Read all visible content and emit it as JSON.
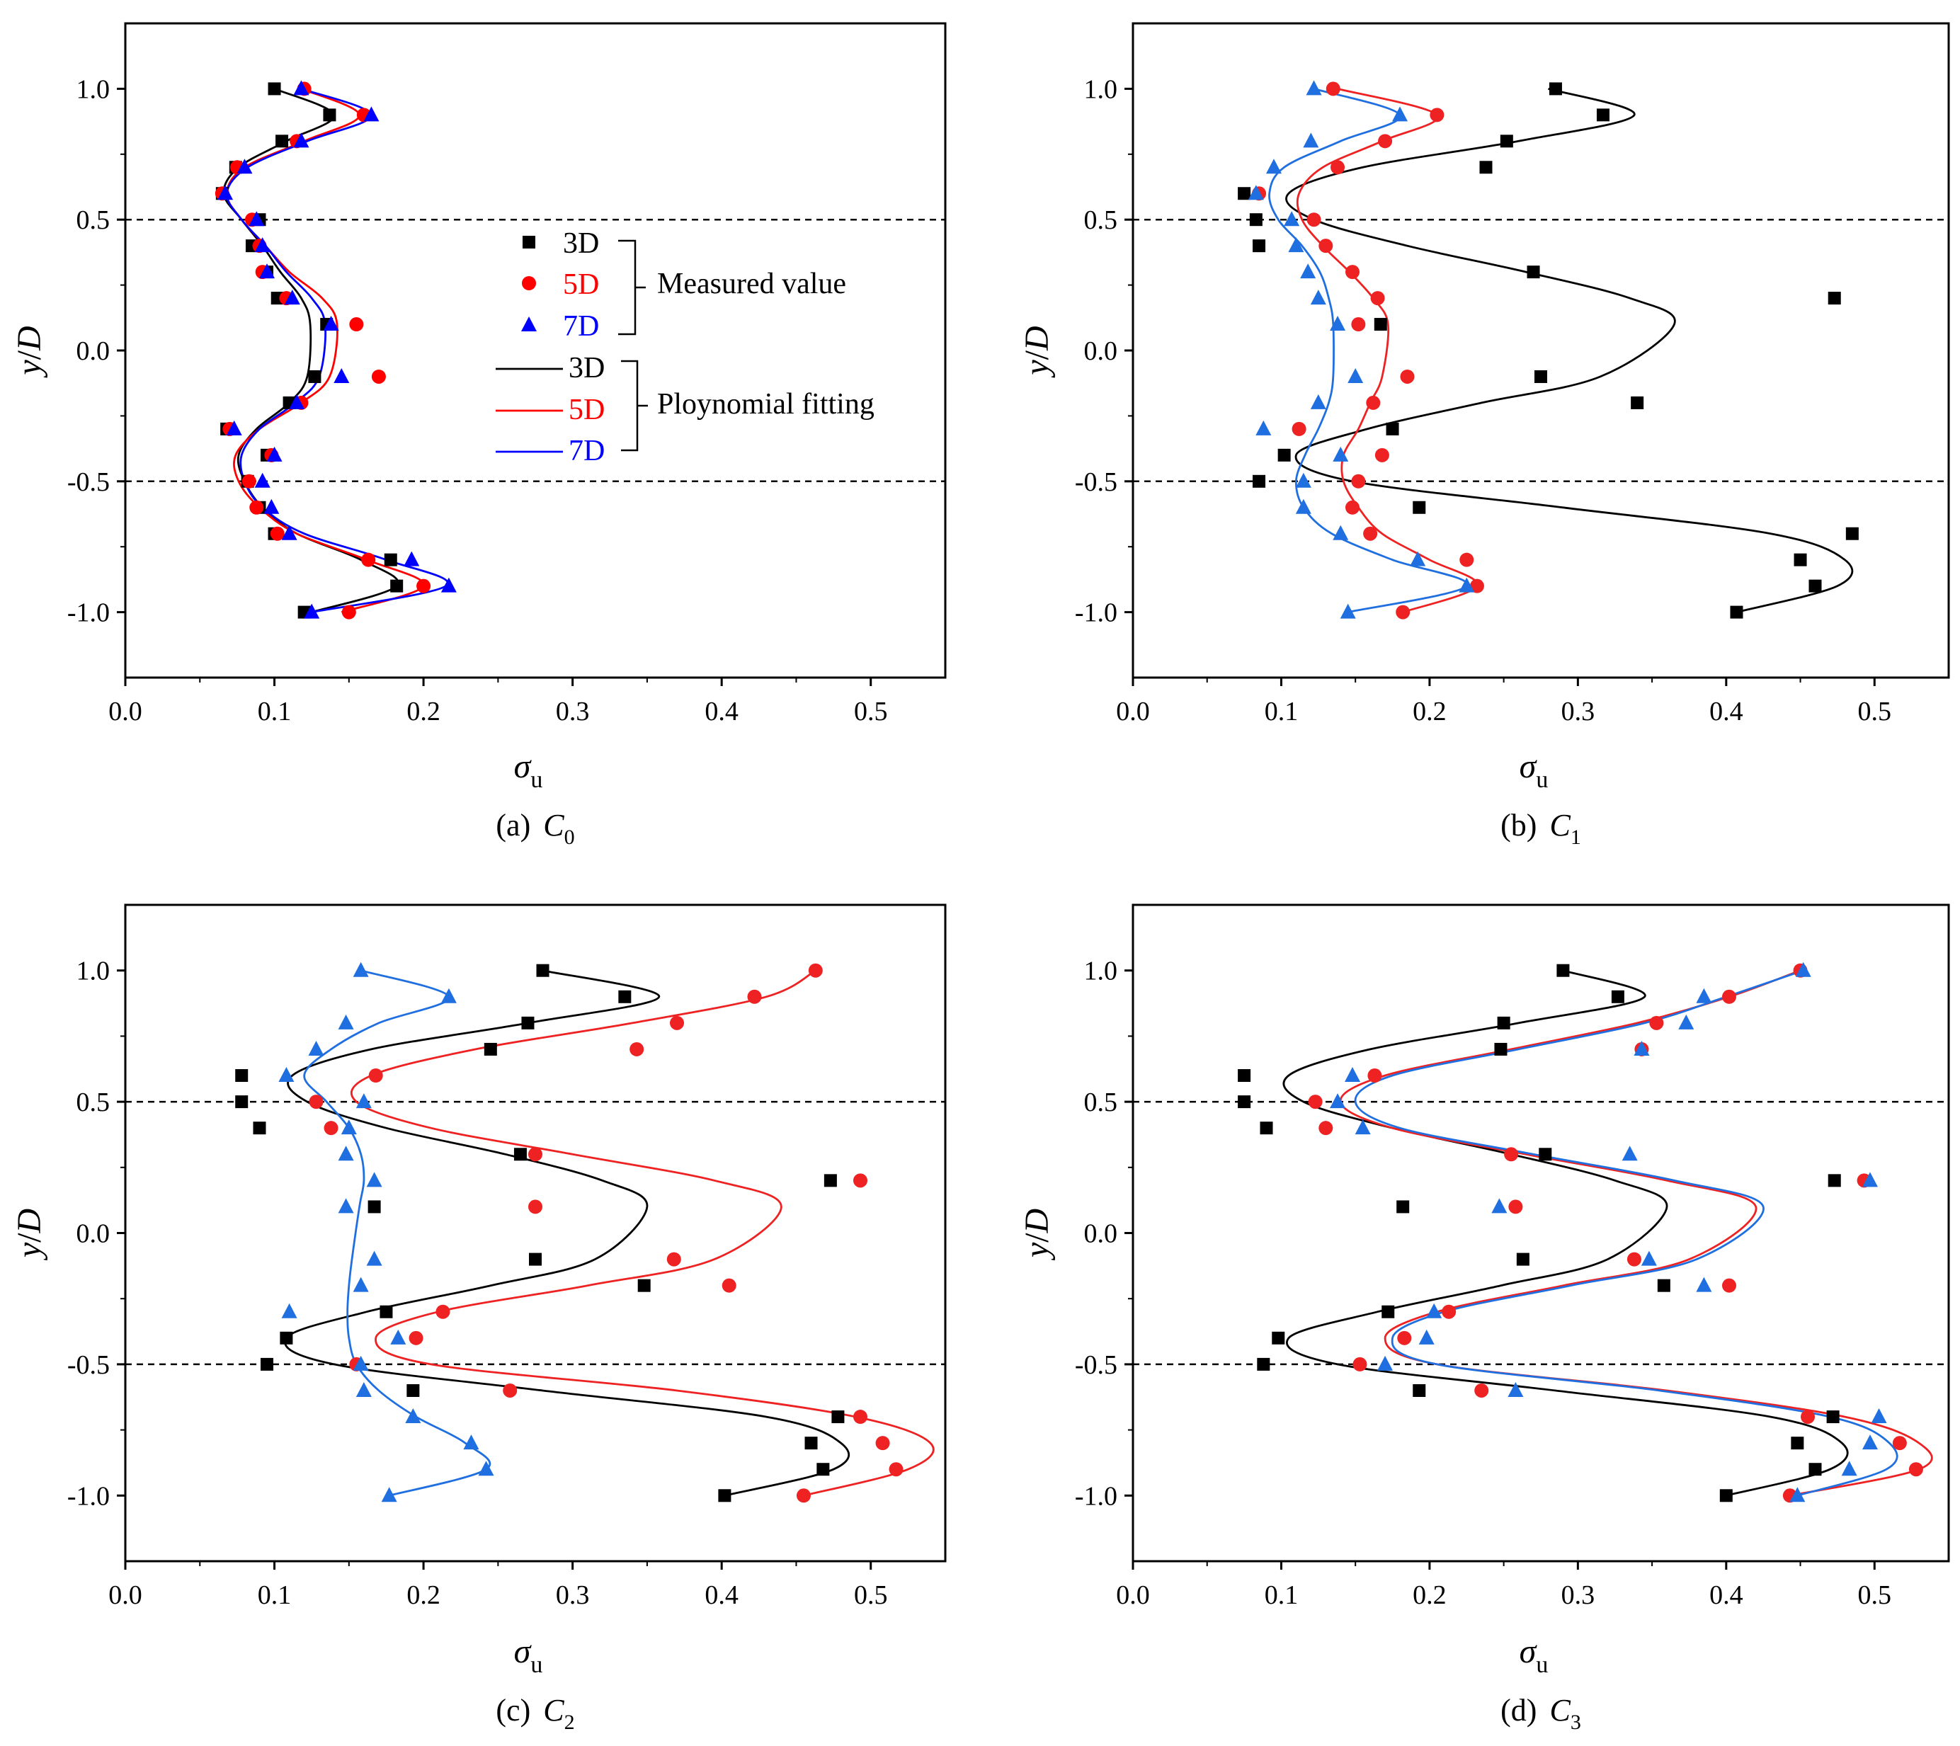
{
  "figure": {
    "xlabel_symbol": "σ",
    "xlabel_subscript": "u",
    "ylabel_prefix": "y",
    "ylabel_sep": "/",
    "ylabel_suffix": "D",
    "series_colors": {
      "3D": "#000000",
      "5D": "#ff0000",
      "7D": "#0000ff"
    },
    "panels_bc_colors": {
      "3D": "#000000",
      "5D": "#ee2222",
      "7D": "#1f6fe0"
    },
    "marker_shapes": {
      "3D": "square-icon",
      "5D": "circle-icon",
      "7D": "triangle-icon"
    },
    "legend": {
      "measured_entries": [
        "3D",
        "5D",
        "7D"
      ],
      "measured_label": "Measured value",
      "fitting_entries": [
        "3D",
        "5D",
        "7D"
      ],
      "fitting_label": "Ploynomial fitting"
    }
  },
  "chart_data": [
    {
      "panel": "a",
      "type": "scatter",
      "caption_prefix": "(a)",
      "caption_letter": "C",
      "caption_sub": "0",
      "xlim": [
        0.0,
        0.55
      ],
      "ylim": [
        -1.25,
        1.25
      ],
      "xticks": [
        "0.0",
        "0.1",
        "0.2",
        "0.3",
        "0.4",
        "0.5"
      ],
      "yticks": [
        "-1.0",
        "-0.5",
        "0.0",
        "0.5",
        "1.0"
      ],
      "reference_lines_y": [
        0.5,
        -0.5
      ],
      "y": [
        1.0,
        0.9,
        0.8,
        0.7,
        0.6,
        0.5,
        0.4,
        0.3,
        0.2,
        0.1,
        -0.1,
        -0.2,
        -0.3,
        -0.4,
        -0.5,
        -0.6,
        -0.7,
        -0.8,
        -0.9,
        -1.0
      ],
      "measured": [
        {
          "name": "3D",
          "x": [
            0.1,
            0.137,
            0.105,
            0.074,
            0.065,
            0.09,
            0.085,
            0.095,
            0.102,
            0.135,
            0.127,
            0.11,
            0.068,
            0.095,
            0.082,
            0.09,
            0.1,
            0.178,
            0.182,
            0.12
          ]
        },
        {
          "name": "5D",
          "x": [
            0.12,
            0.16,
            0.115,
            0.075,
            0.065,
            0.085,
            0.09,
            0.092,
            0.108,
            0.155,
            0.17,
            0.118,
            0.07,
            0.098,
            0.083,
            0.088,
            0.102,
            0.163,
            0.2,
            0.15
          ]
        },
        {
          "name": "7D",
          "x": [
            0.118,
            0.165,
            0.118,
            0.08,
            0.067,
            0.088,
            0.092,
            0.095,
            0.112,
            0.138,
            0.145,
            0.115,
            0.073,
            0.1,
            0.092,
            0.098,
            0.11,
            0.192,
            0.217,
            0.125
          ]
        }
      ],
      "fitting": [
        {
          "name": "3D",
          "x": [
            0.1,
            0.14,
            0.108,
            0.076,
            0.066,
            0.078,
            0.092,
            0.104,
            0.118,
            0.124,
            0.122,
            0.11,
            0.088,
            0.076,
            0.08,
            0.092,
            0.115,
            0.158,
            0.182,
            0.125
          ]
        },
        {
          "name": "5D",
          "x": [
            0.118,
            0.157,
            0.12,
            0.08,
            0.068,
            0.078,
            0.094,
            0.11,
            0.132,
            0.142,
            0.137,
            0.118,
            0.09,
            0.074,
            0.076,
            0.09,
            0.115,
            0.162,
            0.2,
            0.145
          ]
        },
        {
          "name": "7D",
          "x": [
            0.118,
            0.165,
            0.122,
            0.082,
            0.068,
            0.078,
            0.094,
            0.108,
            0.125,
            0.134,
            0.13,
            0.114,
            0.09,
            0.078,
            0.08,
            0.092,
            0.12,
            0.175,
            0.215,
            0.125
          ]
        }
      ]
    },
    {
      "panel": "b",
      "type": "scatter",
      "caption_prefix": "(b)",
      "caption_letter": "C",
      "caption_sub": "1",
      "xlim": [
        0.0,
        0.55
      ],
      "ylim": [
        -1.25,
        1.25
      ],
      "xticks": [
        "0.0",
        "0.1",
        "0.2",
        "0.3",
        "0.4",
        "0.5"
      ],
      "yticks": [
        "-1.0",
        "-0.5",
        "0.0",
        "0.5",
        "1.0"
      ],
      "reference_lines_y": [
        0.5,
        -0.5
      ],
      "y": [
        1.0,
        0.9,
        0.8,
        0.7,
        0.6,
        0.5,
        0.4,
        0.3,
        0.2,
        0.1,
        -0.1,
        -0.2,
        -0.3,
        -0.4,
        -0.5,
        -0.6,
        -0.7,
        -0.8,
        -0.9,
        -1.0
      ],
      "measured": [
        {
          "name": "3D",
          "x": [
            0.285,
            0.317,
            0.252,
            0.238,
            0.075,
            0.083,
            0.085,
            0.27,
            0.473,
            0.167,
            0.275,
            0.34,
            0.175,
            0.102,
            0.085,
            0.193,
            0.485,
            0.45,
            0.46,
            0.407
          ]
        },
        {
          "name": "5D",
          "x": [
            0.135,
            0.205,
            0.17,
            0.138,
            0.085,
            0.122,
            0.13,
            0.148,
            0.165,
            0.152,
            0.185,
            0.162,
            0.112,
            0.168,
            0.152,
            0.148,
            0.16,
            0.225,
            0.232,
            0.182
          ]
        },
        {
          "name": "7D",
          "x": [
            0.122,
            0.18,
            0.12,
            0.095,
            0.083,
            0.107,
            0.11,
            0.118,
            0.125,
            0.138,
            0.15,
            0.125,
            0.088,
            0.14,
            0.115,
            0.115,
            0.14,
            0.192,
            0.225,
            0.145
          ]
        }
      ],
      "fitting": [
        {
          "name": "3D",
          "x": [
            0.28,
            0.338,
            0.26,
            0.155,
            0.105,
            0.122,
            0.185,
            0.265,
            0.335,
            0.365,
            0.315,
            0.235,
            0.158,
            0.11,
            0.148,
            0.29,
            0.43,
            0.48,
            0.475,
            0.407
          ]
        },
        {
          "name": "5D",
          "x": [
            0.138,
            0.205,
            0.168,
            0.128,
            0.112,
            0.114,
            0.128,
            0.146,
            0.162,
            0.172,
            0.168,
            0.16,
            0.152,
            0.142,
            0.142,
            0.152,
            0.168,
            0.2,
            0.232,
            0.182
          ]
        },
        {
          "name": "7D",
          "x": [
            0.122,
            0.18,
            0.14,
            0.102,
            0.092,
            0.098,
            0.114,
            0.126,
            0.132,
            0.135,
            0.135,
            0.132,
            0.125,
            0.116,
            0.11,
            0.115,
            0.134,
            0.175,
            0.225,
            0.145
          ]
        }
      ]
    },
    {
      "panel": "c",
      "type": "scatter",
      "caption_prefix": "(c)",
      "caption_letter": "C",
      "caption_sub": "2",
      "xlim": [
        0.0,
        0.55
      ],
      "ylim": [
        -1.25,
        1.25
      ],
      "xticks": [
        "0.0",
        "0.1",
        "0.2",
        "0.3",
        "0.4",
        "0.5"
      ],
      "yticks": [
        "-1.0",
        "-0.5",
        "0.0",
        "0.5",
        "1.0"
      ],
      "reference_lines_y": [
        0.5,
        -0.5
      ],
      "y": [
        1.0,
        0.9,
        0.8,
        0.7,
        0.6,
        0.5,
        0.4,
        0.3,
        0.2,
        0.1,
        -0.1,
        -0.2,
        -0.3,
        -0.4,
        -0.5,
        -0.6,
        -0.7,
        -0.8,
        -0.9,
        -1.0
      ],
      "measured": [
        {
          "name": "3D",
          "x": [
            0.28,
            0.335,
            0.27,
            0.245,
            0.078,
            0.078,
            0.09,
            0.265,
            0.473,
            0.167,
            0.275,
            0.348,
            0.175,
            0.108,
            0.095,
            0.193,
            0.478,
            0.46,
            0.468,
            0.402
          ]
        },
        {
          "name": "5D",
          "x": [
            0.463,
            0.422,
            0.37,
            0.343,
            0.168,
            0.128,
            0.138,
            0.275,
            0.493,
            0.275,
            0.368,
            0.405,
            0.213,
            0.195,
            0.155,
            0.258,
            0.493,
            0.508,
            0.517,
            0.455
          ]
        },
        {
          "name": "7D",
          "x": [
            0.158,
            0.217,
            0.148,
            0.128,
            0.108,
            0.16,
            0.15,
            0.148,
            0.167,
            0.148,
            0.167,
            0.158,
            0.11,
            0.183,
            0.158,
            0.16,
            0.193,
            0.232,
            0.242,
            0.177
          ]
        }
      ],
      "fitting": [
        {
          "name": "3D",
          "x": [
            0.28,
            0.358,
            0.27,
            0.165,
            0.112,
            0.122,
            0.175,
            0.255,
            0.32,
            0.35,
            0.315,
            0.245,
            0.162,
            0.108,
            0.14,
            0.28,
            0.43,
            0.48,
            0.475,
            0.402
          ]
        },
        {
          "name": "5D",
          "x": [
            0.463,
            0.43,
            0.34,
            0.235,
            0.165,
            0.155,
            0.205,
            0.3,
            0.395,
            0.44,
            0.395,
            0.31,
            0.21,
            0.168,
            0.205,
            0.37,
            0.49,
            0.54,
            0.525,
            0.455
          ]
        },
        {
          "name": "7D",
          "x": [
            0.158,
            0.217,
            0.17,
            0.138,
            0.12,
            0.135,
            0.15,
            0.158,
            0.16,
            0.157,
            0.152,
            0.15,
            0.149,
            0.15,
            0.155,
            0.17,
            0.195,
            0.228,
            0.242,
            0.177
          ]
        }
      ]
    },
    {
      "panel": "d",
      "type": "scatter",
      "caption_prefix": "(d)",
      "caption_letter": "C",
      "caption_sub": "3",
      "xlim": [
        0.0,
        0.55
      ],
      "ylim": [
        -1.25,
        1.25
      ],
      "xticks": [
        "0.0",
        "0.1",
        "0.2",
        "0.3",
        "0.4",
        "0.5"
      ],
      "yticks": [
        "-1.0",
        "-0.5",
        "0.0",
        "0.5",
        "1.0"
      ],
      "reference_lines_y": [
        0.5,
        -0.5
      ],
      "y": [
        1.0,
        0.9,
        0.8,
        0.7,
        0.6,
        0.5,
        0.4,
        0.3,
        0.2,
        0.1,
        -0.1,
        -0.2,
        -0.3,
        -0.4,
        -0.5,
        -0.6,
        -0.7,
        -0.8,
        -0.9,
        -1.0
      ],
      "measured": [
        {
          "name": "3D",
          "x": [
            0.29,
            0.327,
            0.25,
            0.248,
            0.075,
            0.075,
            0.09,
            0.278,
            0.473,
            0.182,
            0.263,
            0.358,
            0.172,
            0.098,
            0.088,
            0.193,
            0.472,
            0.448,
            0.46,
            0.4
          ]
        },
        {
          "name": "5D",
          "x": [
            0.45,
            0.402,
            0.353,
            0.343,
            0.163,
            0.123,
            0.13,
            0.255,
            0.493,
            0.258,
            0.338,
            0.402,
            0.213,
            0.183,
            0.153,
            0.235,
            0.455,
            0.517,
            0.528,
            0.443
          ]
        },
        {
          "name": "7D",
          "x": [
            0.452,
            0.385,
            0.373,
            0.343,
            0.148,
            0.138,
            0.155,
            0.335,
            0.497,
            0.247,
            0.348,
            0.385,
            0.203,
            0.198,
            0.17,
            0.258,
            0.503,
            0.497,
            0.483,
            0.448
          ]
        }
      ],
      "fitting": [
        {
          "name": "3D",
          "x": [
            0.29,
            0.345,
            0.26,
            0.16,
            0.105,
            0.115,
            0.175,
            0.255,
            0.325,
            0.36,
            0.32,
            0.248,
            0.165,
            0.105,
            0.138,
            0.285,
            0.43,
            0.478,
            0.47,
            0.4
          ]
        },
        {
          "name": "5D",
          "x": [
            0.45,
            0.402,
            0.34,
            0.255,
            0.17,
            0.14,
            0.175,
            0.265,
            0.36,
            0.42,
            0.375,
            0.29,
            0.205,
            0.17,
            0.205,
            0.36,
            0.48,
            0.53,
            0.53,
            0.443
          ]
        },
        {
          "name": "7D",
          "x": [
            0.452,
            0.4,
            0.345,
            0.26,
            0.175,
            0.15,
            0.18,
            0.27,
            0.365,
            0.425,
            0.38,
            0.295,
            0.21,
            0.175,
            0.205,
            0.355,
            0.47,
            0.51,
            0.508,
            0.448
          ]
        }
      ]
    }
  ]
}
